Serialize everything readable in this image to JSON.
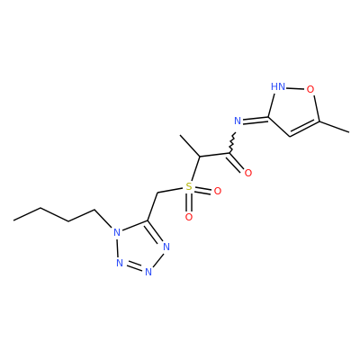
{
  "nodes": [
    {
      "label": "HN"
    },
    {
      "label": "O"
    },
    {
      "label": "N"
    },
    {
      "label": "O"
    },
    {
      "label": "S"
    },
    {
      "label": "O"
    },
    {
      "label": "O"
    },
    {
      "label": "N"
    },
    {
      "label": "N"
    },
    {
      "label": "N"
    },
    {
      "label": "N"
    }
  ]
}
